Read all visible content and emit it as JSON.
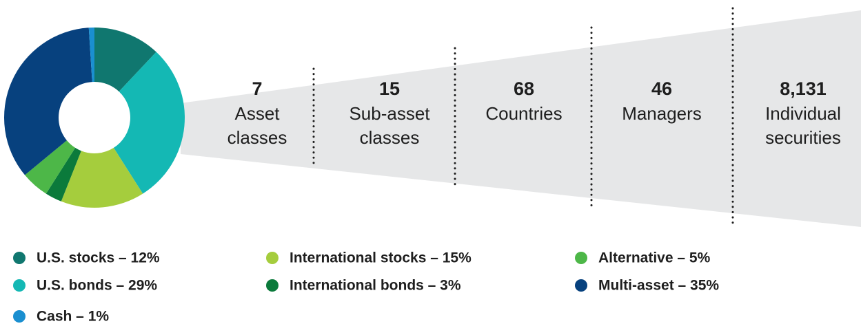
{
  "chart_data": {
    "type": "pie",
    "categories": [
      "U.S. stocks – 12%",
      "U.S. bonds – 29%",
      "International stocks – 15%",
      "International bonds – 3%",
      "Alternative – 5%",
      "Multi-asset – 35%",
      "Cash – 1%"
    ],
    "values": [
      12,
      29,
      15,
      3,
      5,
      35,
      1
    ],
    "colors": [
      "#10776f",
      "#14b8b4",
      "#a5cd3d",
      "#0b7a3b",
      "#4db748",
      "#07417e",
      "#1a8fd0"
    ],
    "donut": true
  },
  "stats": [
    {
      "value": "7",
      "lines": [
        "Asset",
        "classes"
      ]
    },
    {
      "value": "15",
      "lines": [
        "Sub-asset",
        "classes"
      ]
    },
    {
      "value": "68",
      "lines": [
        "Countries"
      ]
    },
    {
      "value": "46",
      "lines": [
        "Managers"
      ]
    },
    {
      "value": "8,131",
      "lines": [
        "Individual",
        "securities"
      ]
    }
  ]
}
